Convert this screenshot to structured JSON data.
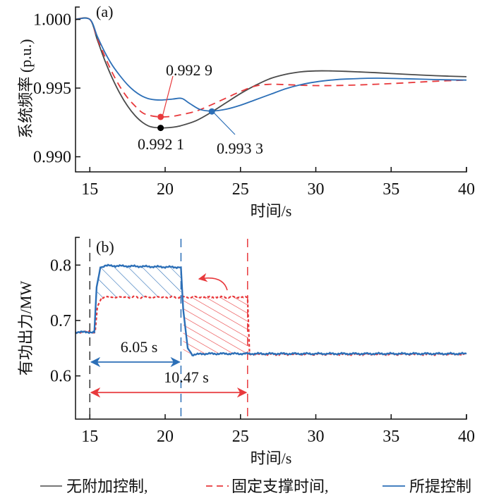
{
  "chart_data": [
    {
      "panel": "(a)",
      "type": "line",
      "xlabel": "时间/s",
      "ylabel": "系统频率 (p.u.)",
      "xlim": [
        14.05,
        40
      ],
      "ylim": [
        0.9889,
        1.0009
      ],
      "xticks": [
        15,
        20,
        25,
        30,
        35,
        40
      ],
      "yticks": [
        0.99,
        0.995,
        1.0
      ],
      "ytick_labels": [
        "0.990",
        "0.995",
        "1.000"
      ],
      "grid": false,
      "series": [
        {
          "name": "无附加控制",
          "color": "#4a4a4a",
          "dash": "solid",
          "x": [
            14.05,
            15,
            15.5,
            16,
            16.5,
            17,
            17.5,
            18,
            18.5,
            19,
            19.7,
            20.5,
            21,
            22,
            23,
            24,
            25,
            26,
            27,
            28,
            29,
            30,
            31,
            32,
            34,
            36,
            38,
            40
          ],
          "y": [
            1.0,
            1.0,
            0.9985,
            0.997,
            0.9957,
            0.9946,
            0.9937,
            0.993,
            0.9925,
            0.9922,
            0.9921,
            0.99215,
            0.99225,
            0.9926,
            0.9932,
            0.9939,
            0.9946,
            0.9952,
            0.9957,
            0.996,
            0.99618,
            0.99625,
            0.99625,
            0.99622,
            0.99612,
            0.996,
            0.9959,
            0.99583
          ]
        },
        {
          "name": "固定支撑时间",
          "color": "#e8393c",
          "dash": "dashed",
          "x": [
            14.05,
            15,
            15.5,
            16,
            16.5,
            17,
            17.5,
            18,
            18.5,
            19,
            19.7,
            20.5,
            21,
            22,
            23,
            24,
            25,
            26,
            27,
            28,
            30,
            32,
            34,
            36,
            38,
            40
          ],
          "y": [
            1.0,
            1.0,
            0.9986,
            0.9973,
            0.9961,
            0.9951,
            0.9943,
            0.9937,
            0.9932,
            0.993,
            0.9929,
            0.99295,
            0.99305,
            0.9933,
            0.99375,
            0.99425,
            0.99475,
            0.99515,
            0.99528,
            0.99525,
            0.99518,
            0.9952,
            0.99528,
            0.99538,
            0.9955,
            0.99558
          ]
        },
        {
          "name": "所提控制",
          "color": "#2c6fb7",
          "dash": "solid",
          "x": [
            14.05,
            15,
            15.5,
            16,
            16.5,
            17,
            17.5,
            18,
            18.5,
            19,
            19.7,
            20.5,
            21.1,
            21.6,
            22.3,
            23.1,
            24,
            25,
            26,
            27,
            28,
            29,
            30,
            31,
            32,
            34,
            36,
            38,
            40
          ],
          "y": [
            1.0,
            1.0,
            0.99875,
            0.9976,
            0.99665,
            0.9959,
            0.99525,
            0.99475,
            0.9944,
            0.9942,
            0.99413,
            0.9942,
            0.99425,
            0.9939,
            0.99345,
            0.99333,
            0.99345,
            0.99375,
            0.99415,
            0.99455,
            0.99495,
            0.99525,
            0.99545,
            0.99558,
            0.99566,
            0.99572,
            0.99568,
            0.99562,
            0.99558
          ]
        }
      ],
      "markers": [
        {
          "series": "固定支撑时间",
          "x": 19.7,
          "y": 0.9929,
          "label": "0.992 9"
        },
        {
          "series": "无附加控制",
          "x": 19.7,
          "y": 0.9921,
          "label": "0.992 1"
        },
        {
          "series": "所提控制",
          "x": 23.1,
          "y": 0.9933,
          "label": "0.993 3"
        }
      ]
    },
    {
      "panel": "(b)",
      "type": "line",
      "xlabel": "时间/s",
      "ylabel": "有功出力/MW",
      "xlim": [
        14.05,
        40
      ],
      "ylim": [
        0.522,
        0.85
      ],
      "xticks": [
        15,
        20,
        25,
        30,
        35,
        40
      ],
      "yticks": [
        0.6,
        0.7,
        0.8
      ],
      "ytick_labels": [
        "0.6",
        "0.7",
        "0.8"
      ],
      "grid": false,
      "series": [
        {
          "name": "固定支撑时间",
          "color": "#e8393c",
          "dash": "dotted",
          "x": [
            14.05,
            15.35,
            15.5,
            15.8,
            25.47,
            25.6,
            40
          ],
          "y": [
            0.679,
            0.679,
            0.725,
            0.742,
            0.742,
            0.639,
            0.639
          ]
        },
        {
          "name": "所提控制",
          "color": "#2c6fb7",
          "dash": "solid",
          "x": [
            14.05,
            15.3,
            15.45,
            15.7,
            16,
            21.05,
            21.2,
            21.5,
            21.8,
            22.5,
            40
          ],
          "y": [
            0.679,
            0.679,
            0.76,
            0.795,
            0.799,
            0.796,
            0.72,
            0.65,
            0.638,
            0.64,
            0.64
          ]
        }
      ],
      "vlines": [
        {
          "x": 15.0,
          "color": "#333333"
        },
        {
          "x": 21.05,
          "color": "#2c6fb7"
        },
        {
          "x": 25.47,
          "color": "#e8393c"
        }
      ],
      "hatched_regions": [
        {
          "color": "#2c6fb7",
          "x": [
            15.5,
            21.05
          ],
          "y": [
            0.742,
            0.797
          ]
        },
        {
          "color": "#e8393c",
          "x": [
            21.2,
            25.5
          ],
          "y": [
            0.64,
            0.742
          ]
        }
      ],
      "annotations": [
        {
          "label": "6.05 s",
          "x_from": 15.0,
          "x_to": 21.05,
          "y": 0.625,
          "color": "#2c6fb7"
        },
        {
          "label": "10.47 s",
          "x_from": 15.0,
          "x_to": 25.47,
          "y": 0.57,
          "color": "#e8393c"
        }
      ]
    }
  ],
  "panel_labels": [
    "(a)",
    "(b)"
  ],
  "legend": {
    "placement": "bottom",
    "items": [
      {
        "label": "无附加控制,",
        "color": "#4a4a4a",
        "dash": "solid"
      },
      {
        "label": "固定支撑时间,",
        "color": "#e8393c",
        "dash": "dashed"
      },
      {
        "label": "所提控制",
        "color": "#2c6fb7",
        "dash": "solid"
      }
    ]
  }
}
